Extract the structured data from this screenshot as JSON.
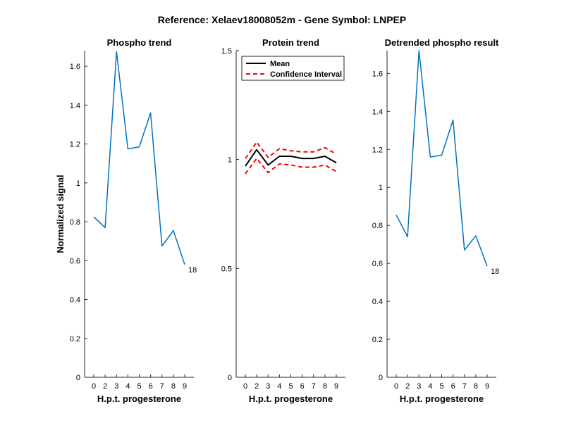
{
  "figure": {
    "suptitle": "Reference:  Xelaev18008052m - Gene Symbol:  LNPEP"
  },
  "colors": {
    "series": "#0072BD",
    "mean": "#000000",
    "ci": "#FF0000",
    "axis": "#262626"
  },
  "chart_data": [
    {
      "type": "line",
      "title": "Phospho trend",
      "xlabel": "H.p.t. progesterone",
      "ylabel": "Normalized signal",
      "categories": [
        "0",
        "2",
        "3",
        "4",
        "5",
        "6",
        "7",
        "8",
        "9"
      ],
      "ylim": [
        0,
        1.68
      ],
      "yticks": [
        "0",
        "0.2",
        "0.4",
        "0.6",
        "0.8",
        "1",
        "1.2",
        "1.4",
        "1.6"
      ],
      "series": [
        {
          "values": [
            0.825,
            0.77,
            1.675,
            1.175,
            1.185,
            1.36,
            0.675,
            0.755,
            0.58
          ]
        }
      ],
      "annotation": "18",
      "grid": false
    },
    {
      "type": "line",
      "title": "Protein trend",
      "xlabel": "H.p.t. progesterone",
      "ylabel": "",
      "categories": [
        "0",
        "2",
        "3",
        "4",
        "5",
        "6",
        "7",
        "8",
        "9"
      ],
      "ylim": [
        0,
        1.5
      ],
      "yticks": [
        "0",
        "0.5",
        "1",
        "1.5"
      ],
      "series": [
        {
          "name": "Mean",
          "values": [
            0.97,
            1.045,
            0.975,
            1.015,
            1.015,
            1.005,
            1.005,
            1.015,
            0.985
          ]
        },
        {
          "name": "Confidence Interval",
          "values": [
            1.005,
            1.08,
            1.01,
            1.05,
            1.04,
            1.035,
            1.035,
            1.055,
            1.025
          ]
        },
        {
          "values": [
            0.935,
            1.005,
            0.94,
            0.98,
            0.975,
            0.965,
            0.965,
            0.975,
            0.945
          ]
        }
      ],
      "legend": "top-left",
      "grid": false
    },
    {
      "type": "line",
      "title": "Detrended phospho result",
      "xlabel": "H.p.t. progesterone",
      "ylabel": "",
      "categories": [
        "0",
        "2",
        "3",
        "4",
        "5",
        "6",
        "7",
        "8",
        "9"
      ],
      "ylim": [
        0,
        1.72
      ],
      "yticks": [
        "0",
        "0.2",
        "0.4",
        "0.6",
        "0.8",
        "1",
        "1.2",
        "1.4",
        "1.6"
      ],
      "series": [
        {
          "values": [
            0.855,
            0.74,
            1.72,
            1.16,
            1.17,
            1.355,
            0.67,
            0.745,
            0.585
          ]
        }
      ],
      "annotation": "18",
      "grid": false
    }
  ]
}
